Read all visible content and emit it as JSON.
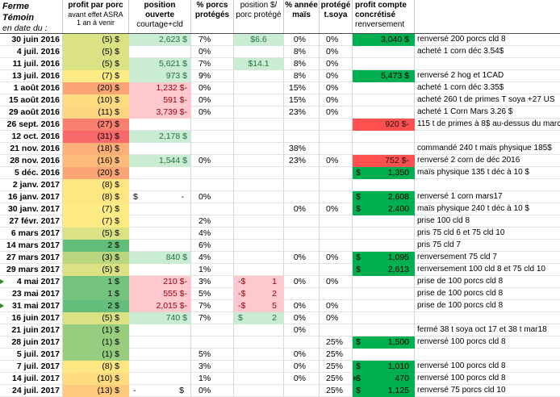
{
  "header": {
    "col_date": [
      "Ferme Témoin",
      "en date du :"
    ],
    "col_profit": [
      "profit par porc",
      "avant effet ASRA",
      "1 an à venir"
    ],
    "col_position": [
      "position ouverte",
      "courtage+cld"
    ],
    "col_pct_pigs": [
      "% porcs",
      "protégés"
    ],
    "col_pos_per_pig": [
      "position $/",
      "porc protégé"
    ],
    "col_corn": [
      "% année",
      "maïs"
    ],
    "col_soy": [
      "protégé",
      "t.soya"
    ],
    "col_realized": [
      "profit compte",
      "concrétisé"
    ],
    "reversal_label": "renversement"
  },
  "colors": {
    "good_bg": "#c9ecd2",
    "good_text": "#1e7145",
    "bad_bg": "#ffc7ce",
    "bad_text": "#9c0006",
    "realized_green": "#00b050",
    "realized_red": "#ff5050",
    "marker_green": "#2e8b2e"
  },
  "rows": [
    {
      "date": "30 juin 2016",
      "profit": "(5) $",
      "profit_bg": "#dbe284",
      "position": "2,623 $",
      "position_state": "pos",
      "pct_pigs": "7%",
      "per_pig": "$6.6",
      "per_pig_state": "pos",
      "corn": "0%",
      "soy": "0%",
      "realized": "3,040 $",
      "realized_state": "green",
      "note": "renversé 200 porcs cld 8"
    },
    {
      "date": "4 juil. 2016",
      "profit": "(5) $",
      "profit_bg": "#dbe284",
      "pct_pigs": "0%",
      "corn": "8%",
      "soy": "0%",
      "note": "acheté 1 corn déc 3.54$"
    },
    {
      "date": "11 juil. 2016",
      "profit": "(5) $",
      "profit_bg": "#dbe284",
      "position": "5,621 $",
      "position_state": "pos",
      "pct_pigs": "7%",
      "per_pig": "$14.1",
      "per_pig_state": "pos",
      "corn": "8%",
      "soy": "0%"
    },
    {
      "date": "13 juil. 2016",
      "profit": "(7) $",
      "profit_bg": "#ffeb84",
      "position": "973 $",
      "position_state": "pos",
      "pct_pigs": "9%",
      "corn": "8%",
      "soy": "0%",
      "realized": "5,473 $",
      "realized_state": "green",
      "note": "renversé 2 hog et 1CAD"
    },
    {
      "date": "1 août 2016",
      "profit": "(20) $",
      "profit_bg": "#fba577",
      "position": "1,232 $-",
      "position_state": "neg",
      "pct_pigs": "0%",
      "corn": "15%",
      "soy": "0%",
      "note": "acheté 1 corn déc 3.35$"
    },
    {
      "date": "15 août 2016",
      "profit": "(10) $",
      "profit_bg": "#fedb81",
      "position": "591 $-",
      "position_state": "neg",
      "pct_pigs": "0%",
      "corn": "15%",
      "soy": "0%",
      "note": "acheté 260 t de primes T soya +27 US"
    },
    {
      "date": "29 août 2016",
      "profit": "(11) $",
      "profit_bg": "#fed580",
      "position": "3,739 $-",
      "position_state": "neg",
      "pct_pigs": "0%",
      "corn": "23%",
      "soy": "0%",
      "note": "acheté 1 Corn Mars 3.26 $"
    },
    {
      "date": "26 sept. 2016",
      "profit": "(27) $",
      "profit_bg": "#f97f6f",
      "realized": "920 $-",
      "realized_state": "red",
      "note": "115 t de primes à 8$ au-dessus du marché"
    },
    {
      "date": "12 oct. 2016",
      "profit": "(31) $",
      "profit_bg": "#f8696b",
      "position": "2,178 $",
      "position_state": "pos"
    },
    {
      "date": "21 nov. 2016",
      "profit": "(18) $",
      "profit_bg": "#fcaf79",
      "corn": "38%",
      "note": "commandé 240 t maïs physique 185$"
    },
    {
      "date": "28 nov. 2016",
      "profit": "(16) $",
      "profit_bg": "#fcba7b",
      "position": "1,544 $",
      "position_state": "pos",
      "pct_pigs": "0%",
      "corn": "23%",
      "soy": "0%",
      "realized": "752 $-",
      "realized_state": "red",
      "note": "renversé 2 corn de déc 2016"
    },
    {
      "date": "5 déc. 2016",
      "profit": "(20) $",
      "profit_bg": "#fba577",
      "realized": {
        "l": "$",
        "r": "1,350"
      },
      "realized_state": "green",
      "note": "maïs physique 135 t déc à 10 $"
    },
    {
      "date": "2 janv. 2017",
      "profit": "(8) $",
      "profit_bg": "#fee783"
    },
    {
      "date": "16 janv. 2017",
      "profit": "(8) $",
      "profit_bg": "#fee783",
      "position": {
        "l": "$",
        "r": "-"
      },
      "position_state": "plain",
      "pct_pigs": "0%",
      "realized": {
        "l": "$",
        "r": "2,608"
      },
      "realized_state": "green",
      "note": "renversé 1 corn mars17"
    },
    {
      "date": "30 janv. 2017",
      "profit": "(7) $",
      "profit_bg": "#ffeb84",
      "corn": "0%",
      "soy": "0%",
      "realized": {
        "l": "$",
        "r": "2,400"
      },
      "realized_state": "green",
      "note": "maïs physique 240 t déc à 10 $"
    },
    {
      "date": "27 févr. 2017",
      "profit": "(7) $",
      "profit_bg": "#ffeb84",
      "pct_pigs": "2%",
      "note": "prise 100 cld 8"
    },
    {
      "date": "6 mars 2017",
      "profit": "(5) $",
      "profit_bg": "#dbe284",
      "pct_pigs": "4%",
      "note": "pris 75 cld 6 et 75 cld 10"
    },
    {
      "date": "14 mars 2017",
      "profit": "2 $",
      "profit_bg": "#63be7b",
      "pct_pigs": "6%",
      "note": "pris 75 cld 7"
    },
    {
      "date": "27 mars 2017",
      "profit": "(3) $",
      "profit_bg": "#bad780",
      "position": "840 $",
      "position_state": "pos",
      "pct_pigs": "4%",
      "corn": "0%",
      "soy": "0%",
      "realized": {
        "l": "$",
        "r": "1,095"
      },
      "realized_state": "green",
      "note": "renversement 75 cld 7"
    },
    {
      "date": "29 mars 2017",
      "profit": "(5) $",
      "profit_bg": "#dbe284",
      "pct_pigs": "1%",
      "realized": {
        "l": "$",
        "r": "2,613"
      },
      "realized_state": "green",
      "note": "renversement 100 cld 8 et 75 cld 10"
    },
    {
      "date": "4 mai 2017",
      "profit": "1 $",
      "profit_bg": "#74c37c",
      "position": "210 $-",
      "position_state": "neg",
      "pct_pigs": "3%",
      "per_pig": {
        "l": "-$",
        "r": "1"
      },
      "per_pig_state": "neg",
      "corn": "0%",
      "soy": "0%",
      "note": "prise de 100 porcs cld 8",
      "date_marker": true
    },
    {
      "date": "23 mai 2017",
      "profit": "1 $",
      "profit_bg": "#74c37c",
      "position": "555 $-",
      "position_state": "neg",
      "pct_pigs": "5%",
      "per_pig": {
        "l": "-$",
        "r": "2"
      },
      "per_pig_state": "neg",
      "note": "prise de 100 porcs cld 8"
    },
    {
      "date": "31 mai 2017",
      "profit": "2 $",
      "profit_bg": "#63be7b",
      "position": "2,015 $-",
      "position_state": "neg",
      "pct_pigs": "7%",
      "per_pig": {
        "l": "-$",
        "r": "5"
      },
      "per_pig_state": "neg",
      "corn": "0%",
      "soy": "0%",
      "note": "prise de 100 porcs cld 8",
      "date_marker": true
    },
    {
      "date": "16 juin 2017",
      "profit": "(5) $",
      "profit_bg": "#dbe284",
      "position": "740 $",
      "position_state": "pos",
      "pct_pigs": "7%",
      "per_pig": {
        "l": "$",
        "r": "2"
      },
      "per_pig_state": "pos",
      "corn": "0%",
      "soy": "0%"
    },
    {
      "date": "21 juin 2017",
      "profit": "(1) $",
      "profit_bg": "#97cd7e",
      "corn": "0%",
      "note": "fermé 38 t soya oct 17 et 38 t mar18"
    },
    {
      "date": "28 juin 2017",
      "profit": "(1) $",
      "profit_bg": "#97cd7e",
      "soy": "25%",
      "realized": {
        "l": "$",
        "r": "1,500"
      },
      "realized_state": "green",
      "note": "renversé 100 porcs cld 8"
    },
    {
      "date": "5 juil. 2017",
      "profit": "(1) $",
      "profit_bg": "#97cd7e",
      "pct_pigs": "5%",
      "corn": "0%",
      "soy": "25%"
    },
    {
      "date": "7 juil. 2017",
      "profit": "(8) $",
      "profit_bg": "#fee783",
      "pct_pigs": "3%",
      "corn": "0%",
      "soy": "25%",
      "realized": {
        "l": "$",
        "r": "1,010"
      },
      "realized_state": "green",
      "note": "renversé 100 porcs cld 8"
    },
    {
      "date": "14 juil. 2017",
      "profit": "(10) $",
      "profit_bg": "#fedb81",
      "pct_pigs": "1%",
      "corn": "0%",
      "soy": "25%",
      "realized": {
        "l": "$",
        "r": "470"
      },
      "realized_state": "green",
      "realized_marker": true,
      "note": "renversé 100 porcs cld 8"
    },
    {
      "date": "24 juil. 2017",
      "profit": "(13) $",
      "profit_bg": "#fdca7e",
      "position": {
        "l": "-",
        "r": "$"
      },
      "position_state": "plain",
      "pct_pigs": "0%",
      "soy": "25%",
      "realized": {
        "l": "$",
        "r": "1,125"
      },
      "realized_state": "green",
      "note": "renversé 75 porcs cld 10"
    }
  ]
}
